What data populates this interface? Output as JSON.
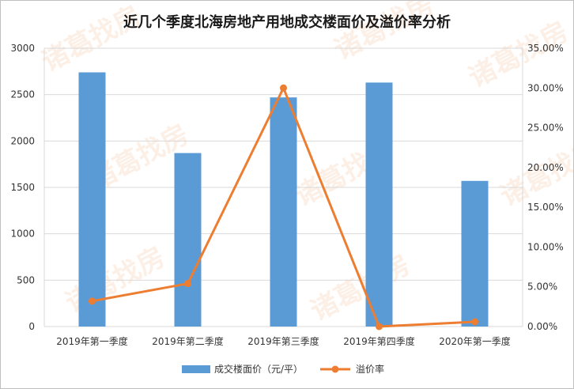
{
  "chart_data": {
    "type": "bar",
    "title": "近几个季度北海房地产用地成交楼面价及溢价率分析",
    "categories": [
      "2019年第一季度",
      "2019年第二季度",
      "2019年第三季度",
      "2019年第四季度",
      "2020年第一季度"
    ],
    "series": [
      {
        "name": "成交楼面价（元/平）",
        "type": "bar",
        "axis": "left",
        "color": "#5b9bd5",
        "values": [
          2740,
          1870,
          2470,
          2630,
          1570
        ]
      },
      {
        "name": "溢价率",
        "type": "line",
        "axis": "right",
        "color": "#ed7d31",
        "values": [
          3.2,
          5.4,
          30.0,
          0.0,
          0.6
        ]
      }
    ],
    "y_left": {
      "min": 0,
      "max": 3000,
      "ticks": [
        "0",
        "500",
        "1000",
        "1500",
        "2000",
        "2500",
        "3000"
      ]
    },
    "y_right": {
      "min": 0,
      "max": 35,
      "unit": "%",
      "ticks": [
        "0.00%",
        "5.00%",
        "10.00%",
        "15.00%",
        "20.00%",
        "25.00%",
        "30.00%",
        "35.00%"
      ]
    },
    "grid": true,
    "legend": "bottom",
    "watermark": "诸葛找房"
  }
}
